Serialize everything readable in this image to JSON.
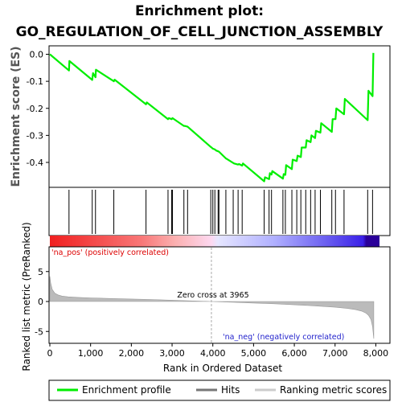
{
  "title_line1": "Enrichment plot:",
  "title_line2": "GO_REGULATION_OF_CELL_JUNCTION_ASSEMBLY",
  "colors": {
    "profile": "#00ee00",
    "hits": "#000000",
    "metric": "#bbbbbb",
    "pos_label": "#dd0000",
    "neg_label": "#2222cc",
    "zero_line": "#aaaaaa"
  },
  "chart_data": [
    {
      "type": "line",
      "name": "enrichment-profile",
      "ylabel": "Enrichment score (ES)",
      "ylim": [
        -0.5,
        0.02
      ],
      "yticks": [
        0.0,
        -0.1,
        -0.2,
        -0.3,
        -0.4
      ],
      "ytick_labels": [
        "0.0",
        "-0.1",
        "-0.2",
        "-0.3",
        "-0.4"
      ],
      "xlim": [
        0,
        8100
      ],
      "series": [
        {
          "x": [
            0,
            470,
            480,
            1040,
            1060,
            1120,
            1130,
            1570,
            1590,
            2360,
            2380,
            2900,
            2920,
            2990,
            3010,
            3290,
            3310,
            3380,
            3950,
            3970,
            4000,
            4050,
            4080,
            4130,
            4150,
            4320,
            4340,
            4500,
            4520,
            4620,
            4640,
            4720,
            4740,
            5260,
            5280,
            5380,
            5400,
            5440,
            5460,
            5720,
            5740,
            5780,
            5800,
            5940,
            5960,
            6060,
            6080,
            6160,
            6180,
            6280,
            6300,
            6400,
            6420,
            6510,
            6530,
            6640,
            6660,
            6920,
            6940,
            7010,
            7030,
            7220,
            7240,
            7800,
            7820,
            7920,
            7940
          ],
          "y": [
            0.0,
            -0.06,
            -0.025,
            -0.095,
            -0.07,
            -0.085,
            -0.057,
            -0.1,
            -0.094,
            -0.185,
            -0.178,
            -0.24,
            -0.236,
            -0.24,
            -0.236,
            -0.265,
            -0.265,
            -0.268,
            -0.343,
            -0.345,
            -0.349,
            -0.352,
            -0.356,
            -0.359,
            -0.36,
            -0.385,
            -0.387,
            -0.402,
            -0.404,
            -0.408,
            -0.406,
            -0.412,
            -0.404,
            -0.47,
            -0.455,
            -0.462,
            -0.44,
            -0.445,
            -0.432,
            -0.46,
            -0.443,
            -0.446,
            -0.41,
            -0.425,
            -0.39,
            -0.395,
            -0.375,
            -0.38,
            -0.345,
            -0.345,
            -0.318,
            -0.325,
            -0.3,
            -0.31,
            -0.283,
            -0.29,
            -0.255,
            -0.287,
            -0.24,
            -0.24,
            -0.2,
            -0.222,
            -0.165,
            -0.244,
            -0.135,
            -0.155,
            0.005
          ]
        }
      ]
    },
    {
      "type": "scatter",
      "name": "hits",
      "x": [
        470,
        1040,
        1120,
        1570,
        2360,
        2900,
        2990,
        3010,
        3290,
        3380,
        3950,
        4000,
        4050,
        4130,
        4150,
        4320,
        4500,
        4620,
        4720,
        5260,
        5380,
        5440,
        5720,
        5780,
        5940,
        6060,
        6160,
        6280,
        6400,
        6510,
        6640,
        6920,
        7010,
        7220,
        7800,
        7920
      ]
    },
    {
      "type": "area",
      "name": "ranked-list-metric",
      "ylabel": "Ranked list metric (PreRanked)",
      "xlabel": "Rank in Ordered Dataset",
      "ylim": [
        -6.5,
        7.5
      ],
      "yticks": [
        5,
        0,
        -5
      ],
      "ytick_labels": [
        "5",
        "0",
        "-5"
      ],
      "xticks": [
        0,
        1000,
        2000,
        3000,
        4000,
        5000,
        6000,
        7000,
        8000
      ],
      "xtick_labels": [
        "0",
        "1,000",
        "2,000",
        "3,000",
        "4,000",
        "5,000",
        "6,000",
        "7,000",
        "8,000"
      ],
      "xlim": [
        0,
        8100
      ],
      "x": [
        0,
        20,
        60,
        120,
        200,
        300,
        450,
        700,
        1000,
        1500,
        2000,
        2500,
        3000,
        3500,
        3965,
        4500,
        5000,
        5500,
        6000,
        6500,
        7000,
        7300,
        7500,
        7650,
        7750,
        7820,
        7880,
        7920,
        7950
      ],
      "values": [
        4.2,
        3.1,
        2.0,
        1.4,
        1.1,
        0.9,
        0.78,
        0.68,
        0.6,
        0.5,
        0.42,
        0.33,
        0.22,
        0.1,
        0.0,
        -0.12,
        -0.25,
        -0.38,
        -0.55,
        -0.72,
        -0.95,
        -1.15,
        -1.35,
        -1.6,
        -1.9,
        -2.3,
        -3.0,
        -4.2,
        -6.2
      ],
      "zero_cross_label": "Zero cross at 3965",
      "zero_cross_x": 3965,
      "pos_label": "'na_pos' (positively correlated)",
      "neg_label": "'na_neg' (negatively correlated)"
    }
  ],
  "legend": {
    "profile_label": "Enrichment profile",
    "hits_label": "Hits",
    "metric_label": "Ranking metric scores"
  }
}
